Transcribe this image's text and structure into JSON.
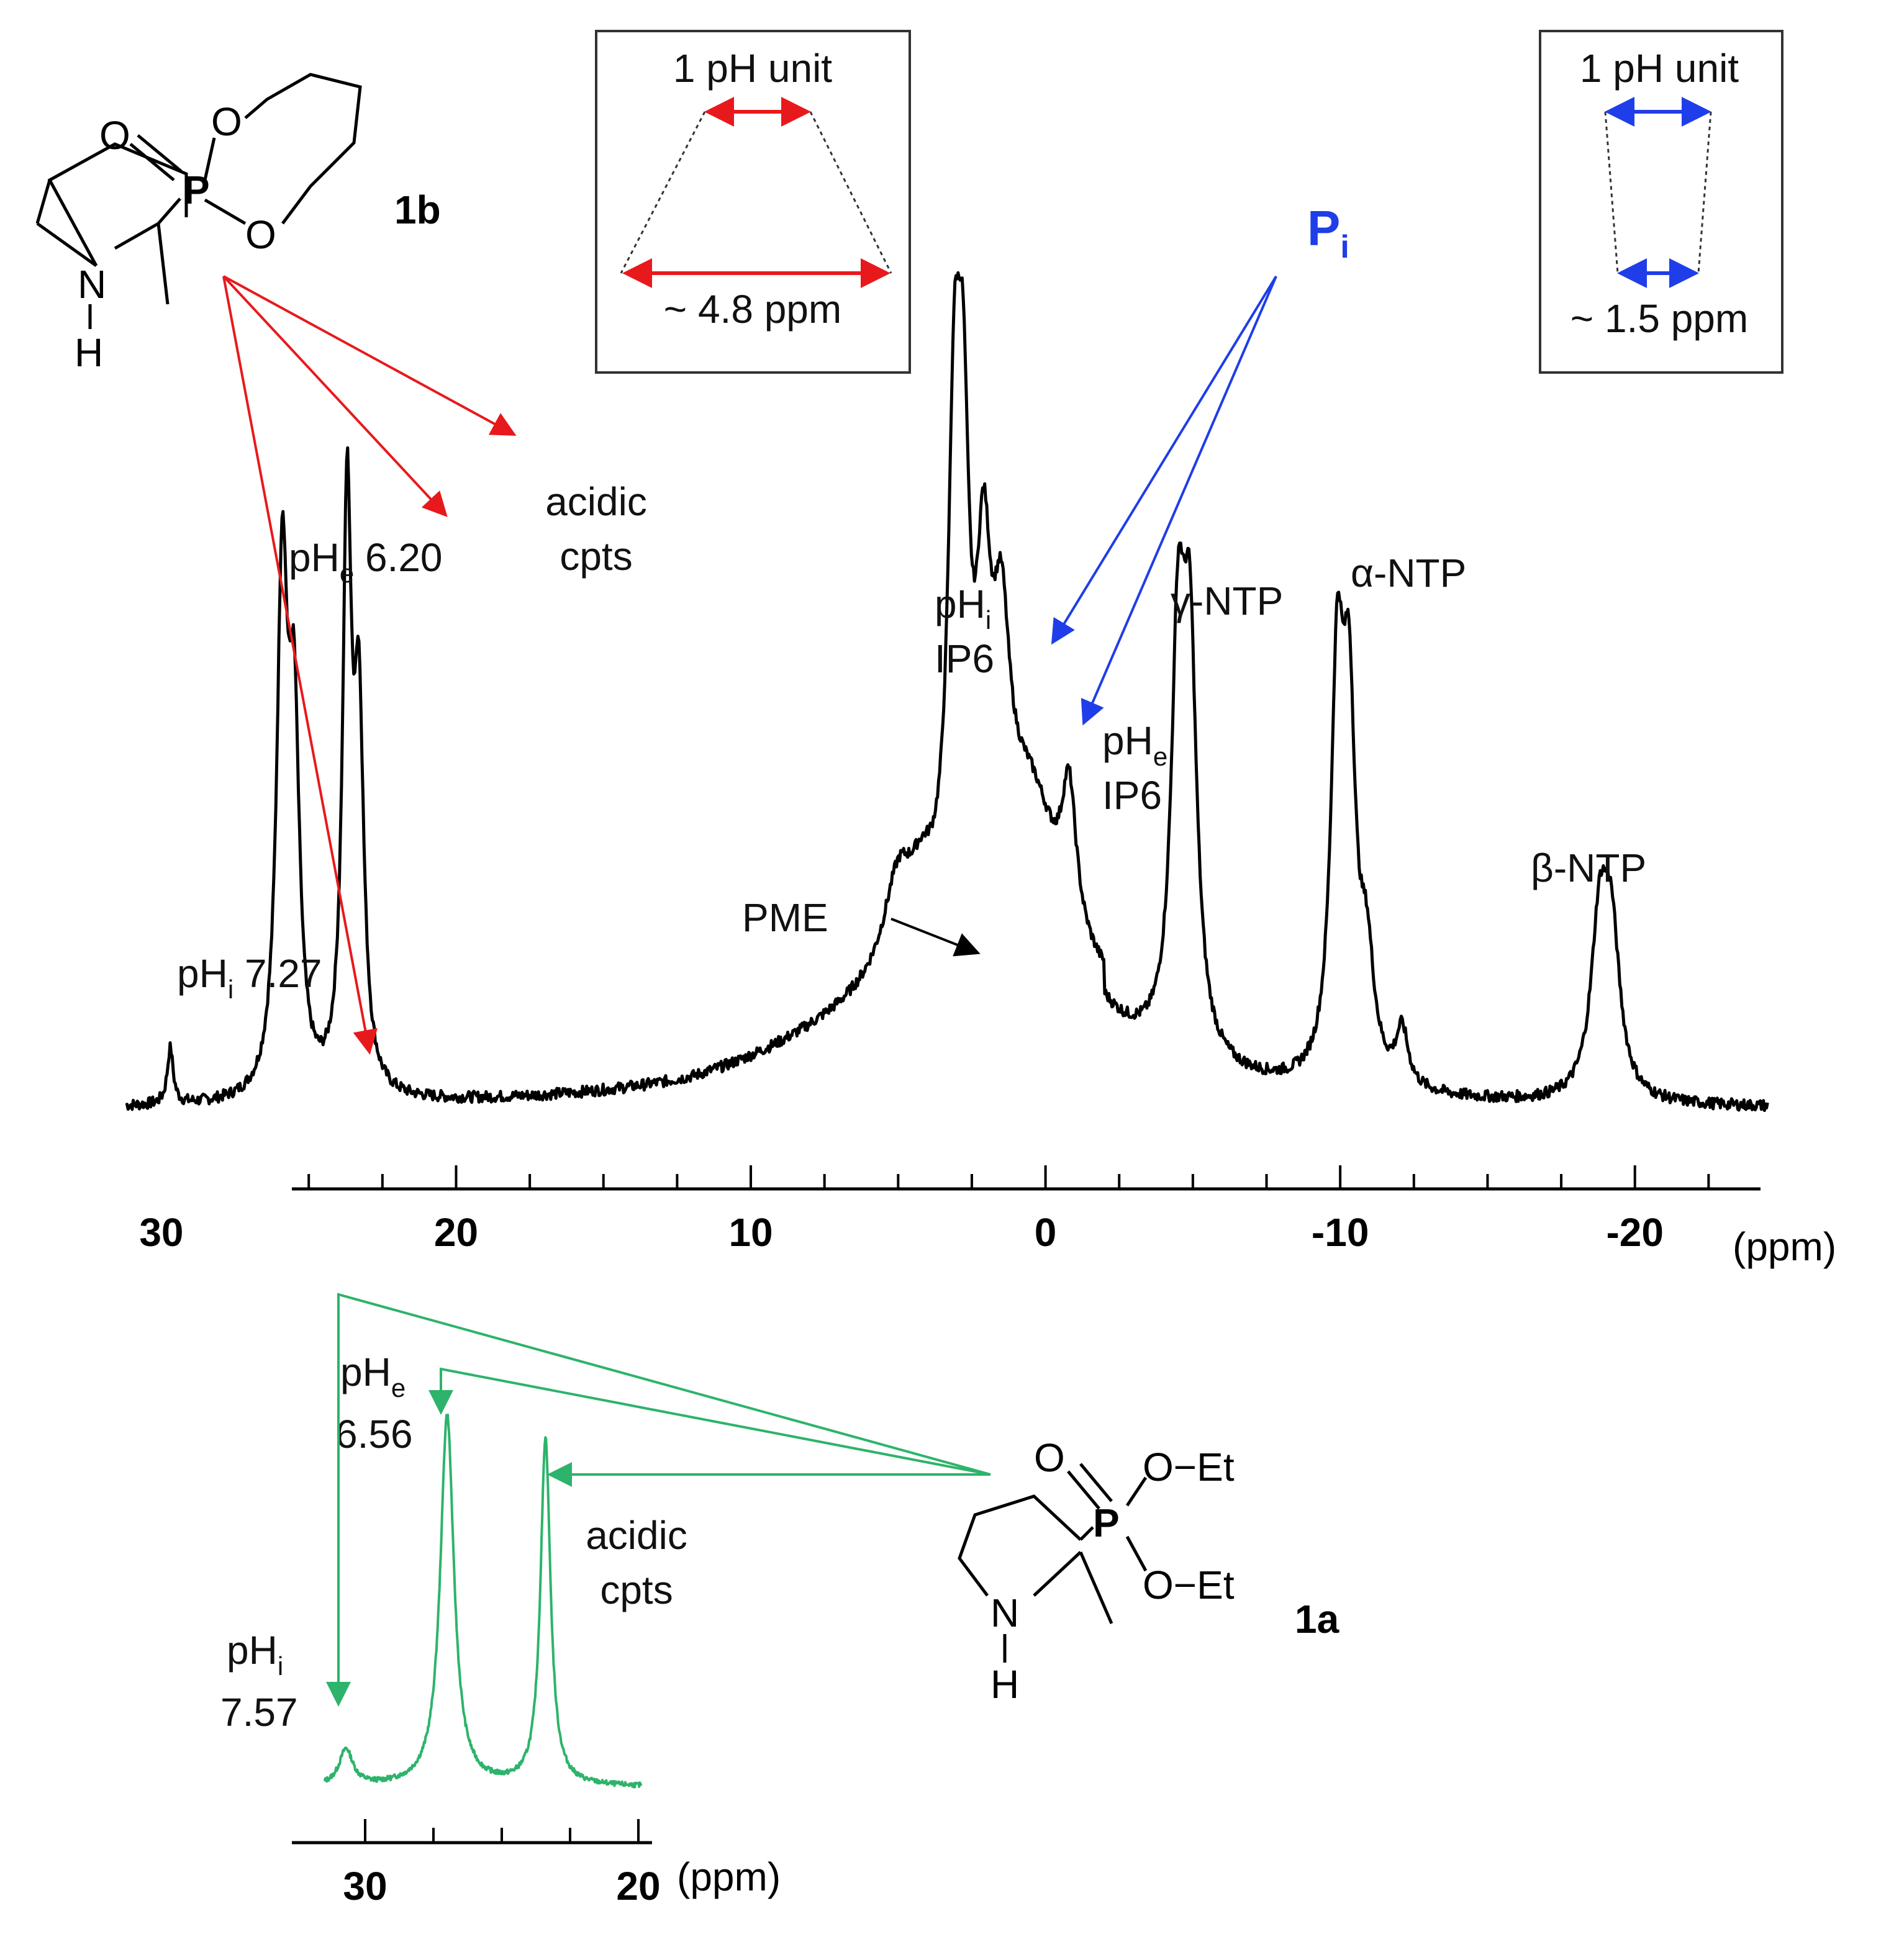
{
  "colors": {
    "spectrum_main": "#000000",
    "spectrum_inset": "#2db36b",
    "compound_1b": "#e8191c",
    "compound_1a": "#2db36b",
    "pi": "#1f3de8",
    "text": "#111111"
  },
  "compounds": {
    "c1b": {
      "name": "1b",
      "atoms": {
        "o_double": "O",
        "p": "P",
        "o_ring1": "O",
        "o_ring2": "O",
        "n": "N",
        "h": "H"
      }
    },
    "c1a": {
      "name": "1a",
      "atoms": {
        "o_double": "O",
        "p": "P",
        "oet1": "O−Et",
        "oet2": "O−Et",
        "n": "N",
        "h": "H"
      }
    }
  },
  "insets": {
    "red": {
      "top": "1 pH unit",
      "bottom": "~ 4.8 ppm"
    },
    "blue": {
      "top": "1 pH unit",
      "bottom": "~ 1.5 ppm"
    }
  },
  "pi_label": {
    "main": "P",
    "sub": "i"
  },
  "chart_data": [
    {
      "type": "line",
      "xlabel": "(ppm)",
      "x_reversed": true,
      "xlim": [
        32,
        -25
      ],
      "ylim": [
        0,
        1
      ],
      "grid": false,
      "xticks": [
        {
          "v": 30,
          "label": "30"
        },
        {
          "v": 20,
          "label": "20"
        },
        {
          "v": 10,
          "label": "10"
        },
        {
          "v": 0,
          "label": "0"
        },
        {
          "v": -10,
          "label": "-10"
        },
        {
          "v": -20,
          "label": "-20"
        }
      ],
      "minor_tick_step": 2.5,
      "peaks": [
        {
          "ppm": 29.7,
          "height": 0.09,
          "width": 0.12
        },
        {
          "ppm": 25.9,
          "height": 0.82,
          "width": 0.22
        },
        {
          "ppm": 25.5,
          "height": 0.55,
          "width": 0.22
        },
        {
          "ppm": 23.7,
          "height": 0.92,
          "width": 0.18
        },
        {
          "ppm": 23.3,
          "height": 0.58,
          "width": 0.2
        },
        {
          "ppm": 5.0,
          "height": 0.14,
          "width": 0.6
        },
        {
          "ppm": 4.2,
          "height": 0.08,
          "width": 0.5
        },
        {
          "ppm": 3.1,
          "height": 0.68,
          "width": 0.25
        },
        {
          "ppm": 2.8,
          "height": 0.62,
          "width": 0.25
        },
        {
          "ppm": 2.1,
          "height": 0.45,
          "width": 0.3
        },
        {
          "ppm": 1.5,
          "height": 0.35,
          "width": 0.35
        },
        {
          "ppm": 0.5,
          "height": 0.25,
          "width": 1.2
        },
        {
          "ppm": -0.8,
          "height": 0.22,
          "width": 0.3
        },
        {
          "ppm": -4.5,
          "height": 0.62,
          "width": 0.28
        },
        {
          "ppm": -4.9,
          "height": 0.6,
          "width": 0.28
        },
        {
          "ppm": -9.9,
          "height": 0.62,
          "width": 0.26
        },
        {
          "ppm": -10.3,
          "height": 0.54,
          "width": 0.26
        },
        {
          "ppm": -10.9,
          "height": 0.18,
          "width": 0.3
        },
        {
          "ppm": -12.1,
          "height": 0.09,
          "width": 0.25
        },
        {
          "ppm": -18.8,
          "height": 0.26,
          "width": 0.35
        },
        {
          "ppm": -19.2,
          "height": 0.24,
          "width": 0.35
        }
      ],
      "broad_humps": [
        {
          "ppm": 2.0,
          "height": 0.18,
          "width": 4.0
        },
        {
          "ppm": 6.0,
          "height": 0.06,
          "width": 5.0
        }
      ],
      "annotations": [
        {
          "id": "phi_727",
          "text": "pH",
          "sub": "i",
          "rest": " 7.27",
          "ppm": 29.7
        },
        {
          "id": "phe_620",
          "text": "pH",
          "sub": "e",
          "rest": " 6.20",
          "ppm": 25.9
        },
        {
          "id": "acidic",
          "lines": [
            "acidic",
            "cpts"
          ],
          "ppm": 23.7
        },
        {
          "id": "pme",
          "text": "PME",
          "ppm": 5.0
        },
        {
          "id": "phi_ip6",
          "text": "pH",
          "sub": "i",
          "line2": "IP6",
          "ppm": 3.1
        },
        {
          "id": "phe_ip6",
          "text": "pH",
          "sub": "e",
          "line2": "IP6",
          "ppm": 2.1
        },
        {
          "id": "gamma",
          "text": "γ-NTP",
          "ppm": -4.7
        },
        {
          "id": "alpha",
          "text": "α-NTP",
          "ppm": -10.0
        },
        {
          "id": "beta",
          "text": "β-NTP",
          "ppm": -19.0
        }
      ]
    },
    {
      "type": "line",
      "xlabel": "(ppm)",
      "x_reversed": true,
      "xlim": [
        32,
        19.5
      ],
      "ylim": [
        0,
        1
      ],
      "grid": false,
      "xticks": [
        {
          "v": 30,
          "label": "30"
        },
        {
          "v": 20,
          "label": "20"
        }
      ],
      "minor_tick_step": 2.5,
      "peaks": [
        {
          "ppm": 30.7,
          "height": 0.09,
          "width": 0.3
        },
        {
          "ppm": 27.0,
          "height": 0.92,
          "width": 0.3
        },
        {
          "ppm": 23.4,
          "height": 0.86,
          "width": 0.22
        }
      ],
      "annotations": [
        {
          "id": "phi_757",
          "text": "pH",
          "sub": "i",
          "line2": "7.57",
          "ppm": 30.7
        },
        {
          "id": "phe_656",
          "text": "pH",
          "sub": "e",
          "line2": "6.56",
          "ppm": 27.0
        },
        {
          "id": "acidic2",
          "lines": [
            "acidic",
            "cpts"
          ],
          "ppm": 23.4
        }
      ]
    }
  ]
}
